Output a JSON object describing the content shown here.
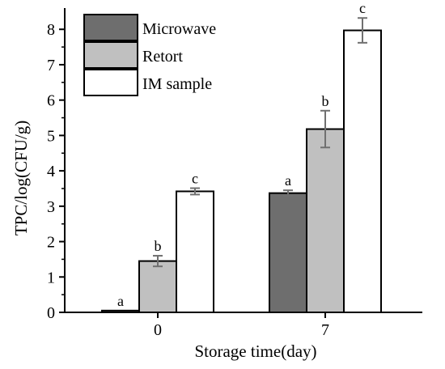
{
  "chart_data": {
    "type": "bar",
    "categories": [
      "0",
      "7"
    ],
    "series": [
      {
        "name": "Microwave",
        "values": [
          0.05,
          3.37
        ],
        "errors": [
          0.0,
          0.08
        ],
        "labels": [
          "a",
          "a"
        ],
        "color": "#6e6e6e"
      },
      {
        "name": "Retort",
        "values": [
          1.45,
          5.18
        ],
        "errors": [
          0.15,
          0.52
        ],
        "labels": [
          "b",
          "b"
        ],
        "color": "#c0c0c0"
      },
      {
        "name": "IM sample",
        "values": [
          3.42,
          7.97
        ],
        "errors": [
          0.09,
          0.35
        ],
        "labels": [
          "c",
          "c"
        ],
        "color": "#ffffff"
      }
    ],
    "xlabel": "Storage time(day)",
    "ylabel": "TPC/log(CFU/g)",
    "ylim": [
      0,
      8.6
    ],
    "yticks": [
      0,
      1,
      2,
      3,
      4,
      5,
      6,
      7,
      8
    ],
    "grid": false,
    "legend": "top-left",
    "title": ""
  }
}
